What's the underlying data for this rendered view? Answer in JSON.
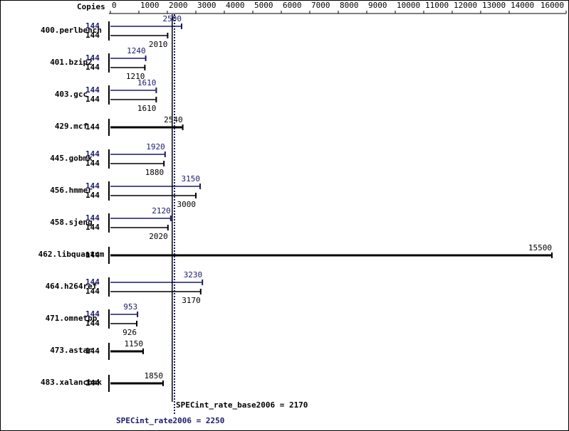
{
  "chart_data": {
    "type": "bar",
    "orientation": "horizontal",
    "copies_label": "Copies",
    "categories": [
      "400.perlbench",
      "401.bzip2",
      "403.gcc",
      "429.mcf",
      "445.gobmk",
      "456.hmmer",
      "458.sjeng",
      "462.libquantum",
      "464.h264ref",
      "471.omnetpp",
      "473.astar",
      "483.xalancbmk"
    ],
    "series": [
      {
        "name": "SPECint_rate2006",
        "color": "#191970",
        "copies": [
          144,
          144,
          144,
          null,
          144,
          144,
          144,
          null,
          144,
          144,
          null,
          null
        ],
        "values": [
          2500,
          1240,
          1610,
          null,
          1920,
          3150,
          2120,
          null,
          3230,
          953,
          null,
          null
        ]
      },
      {
        "name": "SPECint_rate_base2006",
        "color": "#000000",
        "copies": [
          144,
          144,
          144,
          144,
          144,
          144,
          144,
          144,
          144,
          144,
          144,
          144
        ],
        "values": [
          2010,
          1210,
          1610,
          2540,
          1880,
          3000,
          2020,
          15500,
          3170,
          926,
          1150,
          1850
        ]
      }
    ],
    "reference_lines": [
      {
        "label": "SPECint_rate_base2006 = 2170",
        "value": 2170,
        "color": "#000000",
        "style": "solid"
      },
      {
        "label": "SPECint_rate2006 = 2250",
        "value": 2250,
        "color": "#191970",
        "style": "dotted"
      }
    ],
    "xlim": [
      0,
      16000
    ],
    "xticks": [
      0,
      1000,
      2000,
      3000,
      4000,
      5000,
      6000,
      7000,
      8000,
      9000,
      10000,
      11000,
      12000,
      13000,
      14000,
      16000
    ]
  }
}
